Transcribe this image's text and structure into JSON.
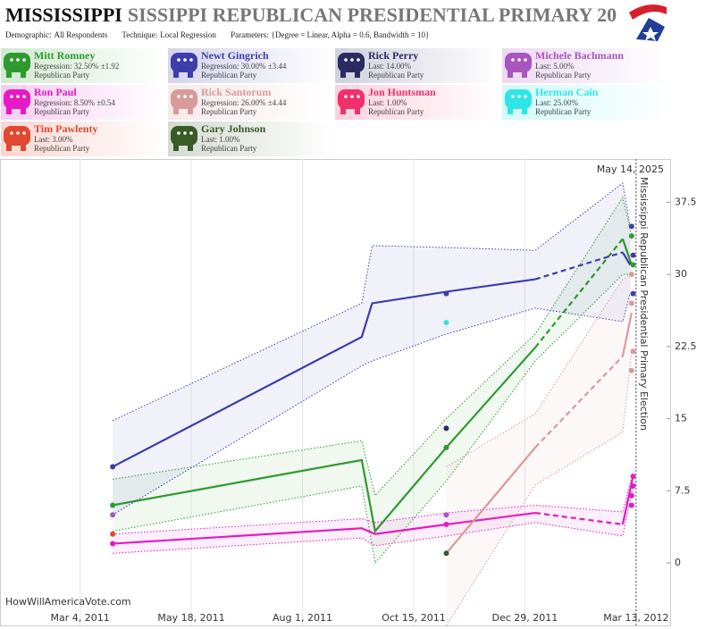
{
  "header": {
    "title": "MISSISSIPPI",
    "subtitle": "SISSIPPI REPUBLICAN PRESIDENTIAL PRIMARY 20",
    "info": [
      {
        "label": "Demographic:",
        "value": "All Respondents"
      },
      {
        "label": "Technique:",
        "value": "Local Regression"
      },
      {
        "label": "Parameters:",
        "value": "{Degree = Linear, Alpha = 0.6, Bandwidth = 10}"
      }
    ]
  },
  "chart_data": {
    "type": "line",
    "annotation": "May 14, 2025",
    "watermark": "HowWillAmericaVote.com",
    "event": {
      "date": "2012-03-13",
      "label": "Mississippi Republican Presidential Primary Election"
    },
    "xlim": [
      "2011-01-09",
      "2012-04-05"
    ],
    "xticks": [
      {
        "value": "2011-03-04",
        "label": "Mar 4, 2011"
      },
      {
        "value": "2011-05-18",
        "label": "May 18, 2011"
      },
      {
        "value": "2011-08-01",
        "label": "Aug 1, 2011"
      },
      {
        "value": "2011-10-15",
        "label": "Oct 15, 2011"
      },
      {
        "value": "2011-12-29",
        "label": "Dec 29, 2011"
      },
      {
        "value": "2012-03-13",
        "label": "Mar 13, 2012"
      }
    ],
    "ylim": [
      -6.5,
      42
    ],
    "yticks": [
      0,
      7.5,
      15,
      22.5,
      30,
      37.5
    ],
    "grid": true,
    "series": [
      {
        "name": "Mitt Romney",
        "color": "#2e9a2e",
        "stat": "Regression: 32.50% ±1.92",
        "party": "Republican Party",
        "x": [
          "2011-03-26",
          "2011-09-10",
          "2011-09-19",
          "2011-11-06",
          "2012-01-05",
          "2012-03-04",
          "2012-03-10"
        ],
        "values": [
          6,
          10.7,
          3.3,
          12,
          22.4,
          33.7,
          31
        ],
        "upper": [
          8.7,
          12.7,
          7,
          15,
          23.8,
          38,
          34
        ],
        "lower": [
          3.3,
          8,
          0,
          8.5,
          21,
          30,
          30
        ],
        "poll_x": [
          "2011-03-26",
          "2011-11-06",
          "2012-03-10",
          "2012-03-11"
        ],
        "poll_values": [
          6,
          12,
          34,
          31
        ]
      },
      {
        "name": "Newt Gingrich",
        "color": "#3d3dab",
        "stat": "Regression: 30.00% ±3.44",
        "party": "Republican Party",
        "x": [
          "2011-03-26",
          "2011-09-10",
          "2011-09-17",
          "2011-11-06",
          "2012-01-05",
          "2012-03-04",
          "2012-03-09"
        ],
        "values": [
          10,
          23.5,
          27,
          28.2,
          29.5,
          32.3,
          31
        ],
        "upper": [
          14.8,
          27,
          33,
          32.8,
          32.5,
          39.5,
          35
        ],
        "lower": [
          5,
          20.5,
          21,
          23.8,
          26.5,
          25.1,
          28
        ],
        "poll_x": [
          "2011-03-26",
          "2011-11-06",
          "2012-03-10",
          "2012-03-11",
          "2012-03-11"
        ],
        "poll_values": [
          10,
          28,
          35,
          32,
          28
        ]
      },
      {
        "name": "Rick Perry",
        "color": "#2b2b63",
        "stat": "Last: 14.00%",
        "party": "Republican Party",
        "poll_x": [
          "2011-11-06"
        ],
        "poll_values": [
          14
        ]
      },
      {
        "name": "Michele Bachmann",
        "color": "#a855c0",
        "stat": "Last: 5.00%",
        "party": "Republican Party",
        "poll_x": [
          "2011-03-26",
          "2011-11-06"
        ],
        "poll_values": [
          5,
          5
        ]
      },
      {
        "name": "Ron Paul",
        "color": "#e619c4",
        "stat": "Regression: 8.50% ±0.54",
        "party": "Republican Party",
        "x": [
          "2011-03-26",
          "2011-09-10",
          "2011-09-19",
          "2011-11-06",
          "2012-01-05",
          "2012-03-04",
          "2012-03-11"
        ],
        "values": [
          2,
          3.6,
          3,
          4,
          5.2,
          4,
          9
        ],
        "upper": [
          3,
          4.6,
          4.2,
          5.2,
          6,
          5.3,
          9.5
        ],
        "lower": [
          1,
          2.6,
          1.8,
          2.8,
          4.2,
          2.8,
          8
        ],
        "poll_x": [
          "2011-03-26",
          "2011-11-06",
          "2012-03-10",
          "2012-03-10",
          "2012-03-11",
          "2012-03-11"
        ],
        "poll_values": [
          2,
          4,
          6,
          7,
          8,
          9
        ]
      },
      {
        "name": "Rick Santorum",
        "color": "#d99a9a",
        "stat": "Regression: 26.00% ±4.44",
        "party": "Republican Party",
        "x": [
          "2011-11-06",
          "2012-01-05",
          "2012-03-04",
          "2012-03-10"
        ],
        "values": [
          1,
          12,
          21.5,
          26
        ],
        "upper": [
          10,
          15.5,
          29.5,
          30
        ],
        "lower": [
          -6.5,
          8.1,
          13.6,
          22
        ],
        "poll_x": [
          "2012-03-10",
          "2012-03-10",
          "2012-03-11",
          "2012-03-10"
        ],
        "poll_values": [
          30,
          27,
          22,
          20
        ]
      },
      {
        "name": "Jon Huntsman",
        "color": "#f0306a",
        "stat": "Last: 1.00%",
        "party": "Republican Party"
      },
      {
        "name": "Herman Cain",
        "color": "#2ee6e6",
        "stat": "Last: 25.00%",
        "party": "Republican Party",
        "poll_x": [
          "2011-11-06"
        ],
        "poll_values": [
          25
        ]
      },
      {
        "name": "Tim Pawlenty",
        "color": "#e04830",
        "stat": "Last: 3.00%",
        "party": "Republican Party",
        "poll_x": [
          "2011-03-26"
        ],
        "poll_values": [
          3
        ]
      },
      {
        "name": "Gary Johnson",
        "color": "#3a5a28",
        "stat": "Last: 1.00%",
        "party": "Republican Party",
        "poll_x": [
          "2011-11-06"
        ],
        "poll_values": [
          1
        ]
      }
    ]
  }
}
